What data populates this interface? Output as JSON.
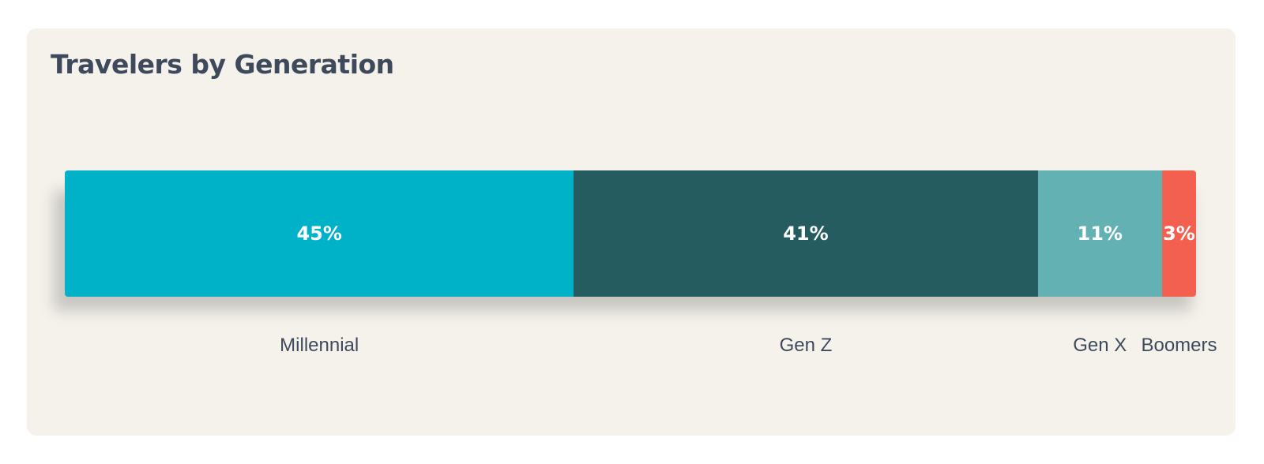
{
  "chart_data": {
    "type": "bar",
    "orientation": "horizontal-stacked-100",
    "title": "Travelers by Generation",
    "categories": [
      "Millennial",
      "Gen Z",
      "Gen X",
      "Boomers"
    ],
    "values": [
      45,
      41,
      11,
      3
    ],
    "value_labels": [
      "45%",
      "41%",
      "11%",
      "3%"
    ],
    "unit": "%",
    "colors": [
      "#00b2c8",
      "#255c60",
      "#63b1b3",
      "#f46050"
    ],
    "grid": false,
    "legend": "none"
  },
  "theme": {
    "card_background": "#f5f2ec",
    "text_color": "#3e4a5c",
    "value_text_color": "#ffffff"
  }
}
